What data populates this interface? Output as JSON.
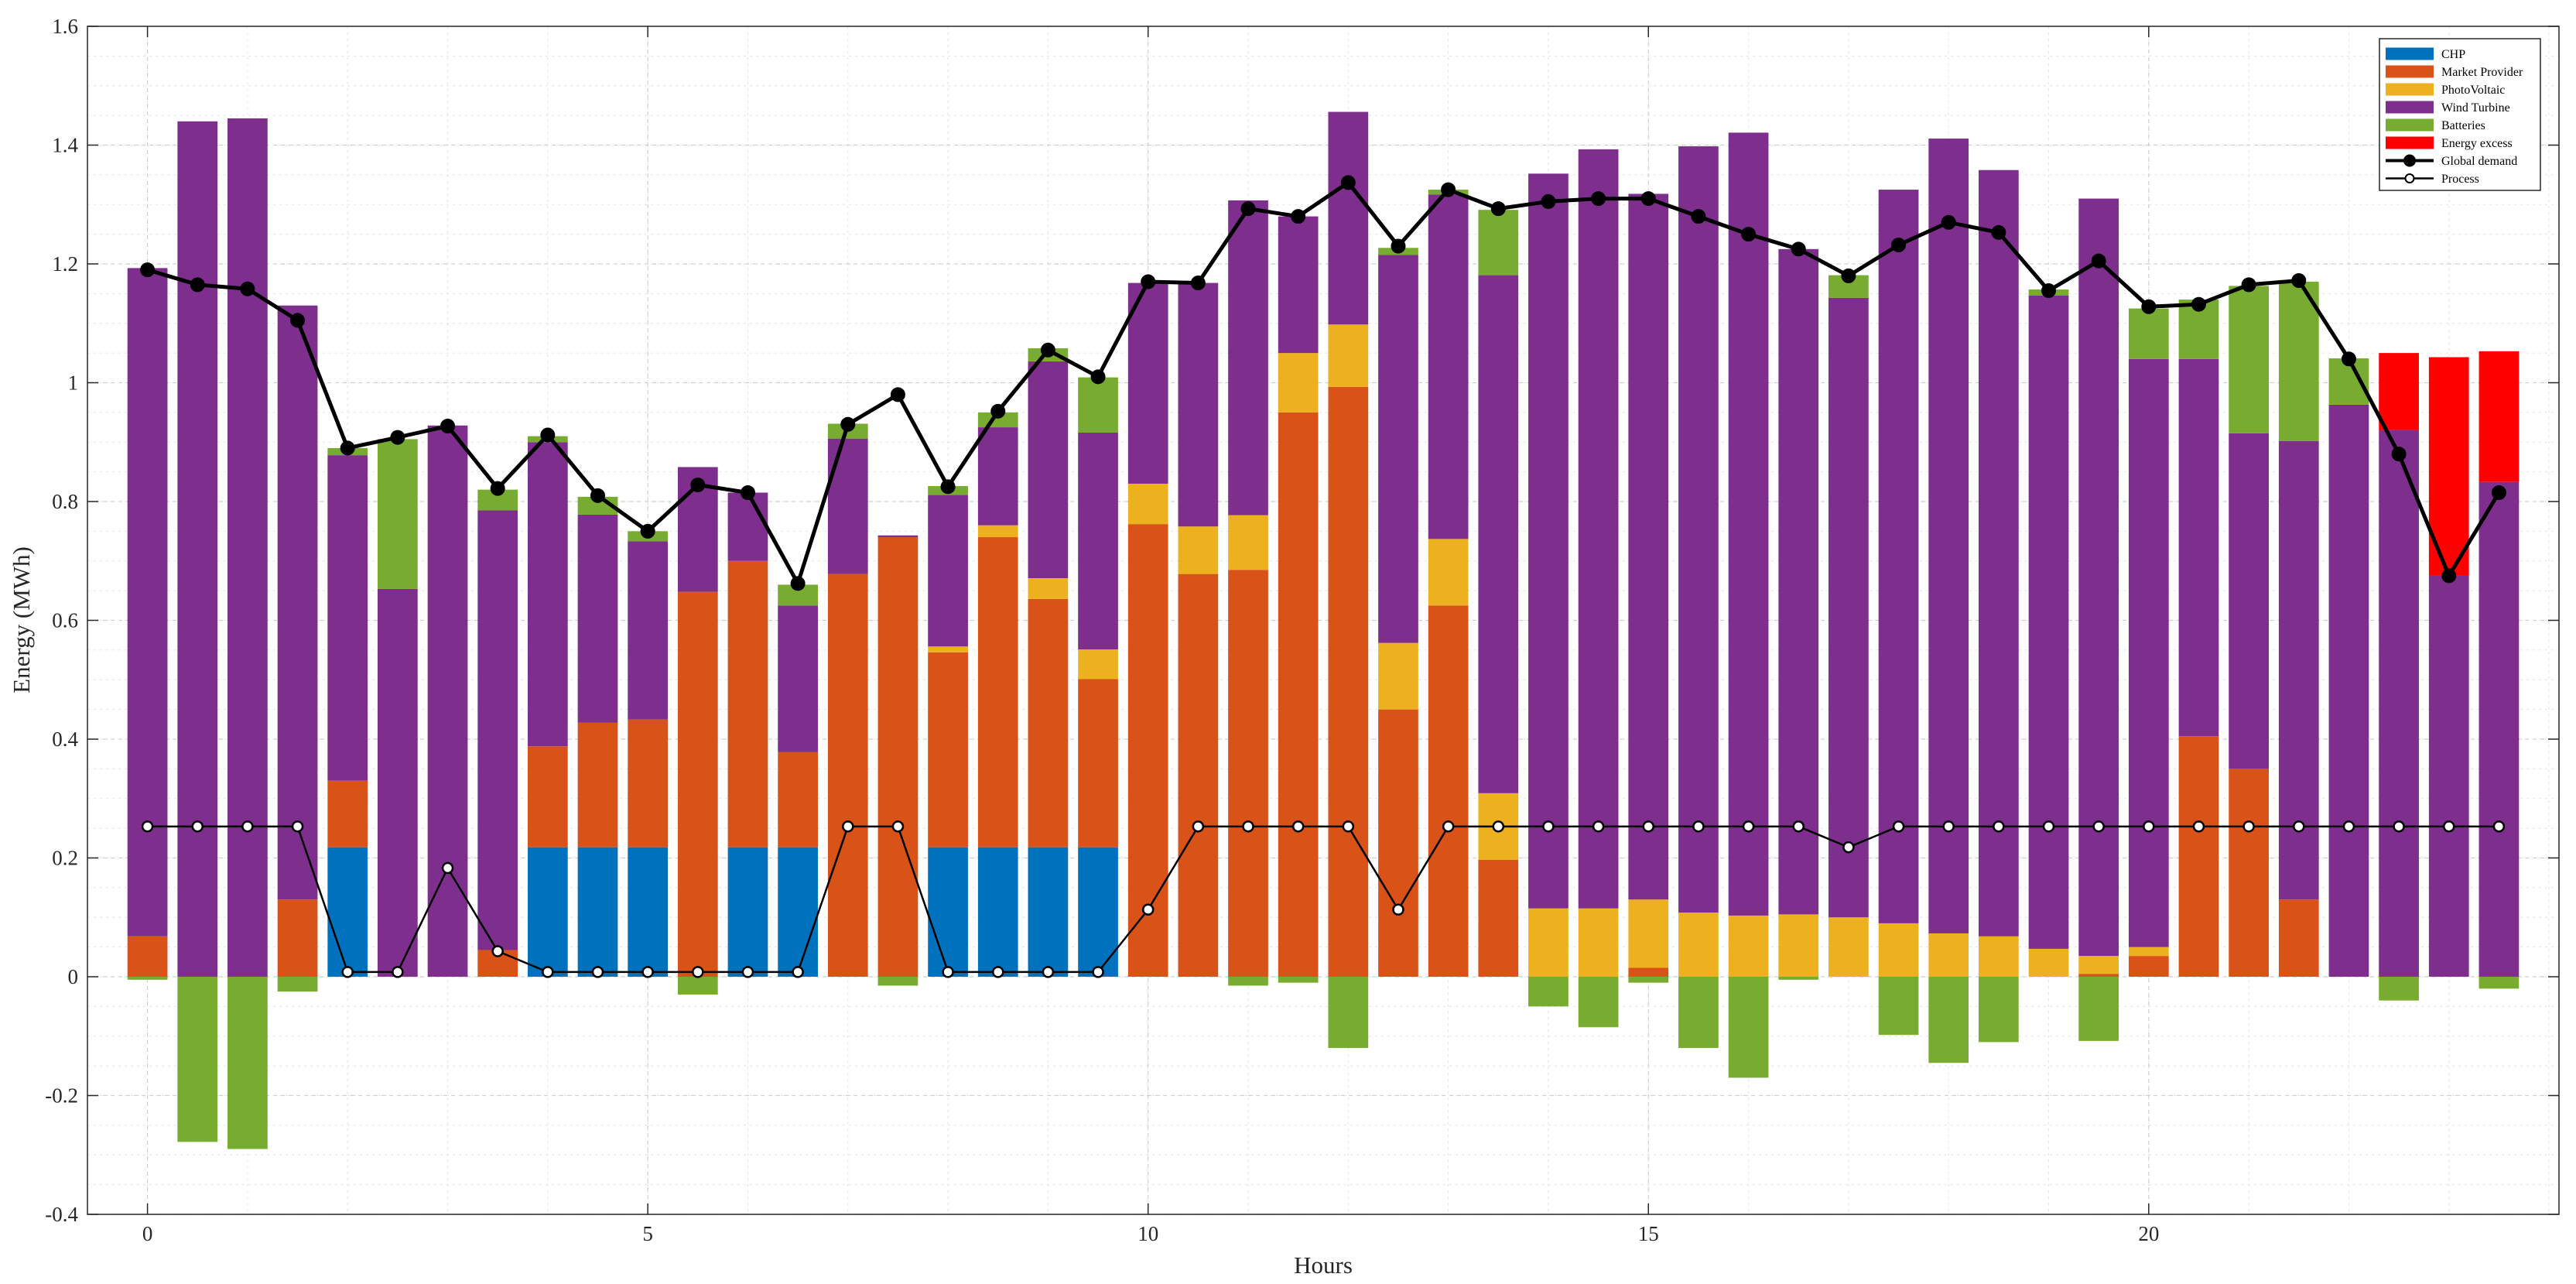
{
  "chart_data": {
    "type": "bar",
    "stacked": true,
    "title": "",
    "xlabel": "Hours",
    "ylabel": "Energy (MWh)",
    "xlim": [
      -0.6,
      24.1
    ],
    "ylim": [
      -0.4,
      1.6
    ],
    "x_ticks": [
      0,
      5,
      10,
      15,
      20
    ],
    "x_tick_labels": [
      "0",
      "5",
      "10",
      "15",
      "20"
    ],
    "y_ticks": [
      -0.4,
      -0.2,
      0,
      0.2,
      0.4,
      0.6,
      0.8,
      1,
      1.2,
      1.4,
      1.6
    ],
    "y_tick_labels": [
      "-0.4",
      "-0.2",
      "0",
      "0.2",
      "0.4",
      "0.6",
      "0.8",
      "1",
      "1.2",
      "1.4",
      "1.6"
    ],
    "grid": true,
    "legend_position": "top-right",
    "bar_width": 0.4,
    "x": [
      0,
      0.5,
      1,
      1.5,
      2,
      2.5,
      3,
      3.5,
      4,
      4.5,
      5,
      5.5,
      6,
      6.5,
      7,
      7.5,
      8,
      8.5,
      9,
      9.5,
      10,
      10.5,
      11,
      11.5,
      12,
      12.5,
      13,
      13.5,
      14,
      14.5,
      15,
      15.5,
      16,
      16.5,
      17,
      17.5,
      18,
      18.5,
      19,
      19.5,
      20,
      20.5,
      21,
      21.5,
      22,
      22.5,
      23,
      23.5
    ],
    "series": [
      {
        "name": "CHP",
        "color": "#0072BD",
        "kind": "bar",
        "values": [
          0,
          0,
          0,
          0,
          0.218,
          0,
          0,
          0,
          0.218,
          0.218,
          0.218,
          0,
          0.218,
          0.218,
          0,
          0,
          0.218,
          0.218,
          0.218,
          0.218,
          0,
          0,
          0,
          0,
          0,
          0,
          0,
          0,
          0,
          0,
          0,
          0,
          0,
          0,
          0,
          0,
          0,
          0,
          0,
          0,
          0,
          0,
          0,
          0,
          0,
          0,
          0,
          0
        ]
      },
      {
        "name": "Market Provider",
        "color": "#D95319",
        "kind": "bar",
        "values": [
          0.068,
          0,
          0,
          0.13,
          0.112,
          0,
          0,
          0.045,
          0.17,
          0.21,
          0.215,
          0.648,
          0.482,
          0.16,
          0.678,
          0.74,
          0.328,
          0.522,
          0.418,
          0.283,
          0.762,
          0.678,
          0.685,
          0.95,
          0.993,
          0.45,
          0.625,
          0.197,
          0,
          0,
          0.015,
          0,
          0,
          0,
          0,
          0,
          0,
          0,
          0,
          0.005,
          0.035,
          0.405,
          0.35,
          0.13,
          0,
          0,
          0,
          0
        ]
      },
      {
        "name": "PhotoVoltaic",
        "color": "#EDB120",
        "kind": "bar",
        "values": [
          0,
          0,
          0,
          0,
          0,
          0,
          0,
          0,
          0,
          0,
          0,
          0,
          0,
          0,
          0,
          0,
          0.01,
          0.02,
          0.035,
          0.05,
          0.068,
          0.08,
          0.092,
          0.1,
          0.105,
          0.112,
          0.112,
          0.112,
          0.115,
          0.115,
          0.115,
          0.108,
          0.103,
          0.105,
          0.1,
          0.09,
          0.073,
          0.068,
          0.047,
          0.03,
          0.015,
          0,
          0,
          0,
          0,
          0,
          0,
          0
        ]
      },
      {
        "name": "Wind Turbine",
        "color": "#7E2F8E",
        "kind": "bar",
        "values": [
          1.125,
          1.44,
          1.445,
          1.0,
          0.548,
          0.653,
          0.928,
          0.74,
          0.512,
          0.35,
          0.3,
          0.21,
          0.115,
          0.247,
          0.228,
          0.003,
          0.255,
          0.165,
          0.365,
          0.365,
          0.338,
          0.41,
          0.53,
          0.23,
          0.358,
          0.653,
          0.58,
          0.872,
          1.237,
          1.278,
          1.188,
          1.29,
          1.318,
          1.12,
          1.043,
          1.235,
          1.338,
          1.29,
          1.1,
          1.275,
          0.99,
          0.635,
          0.565,
          0.772,
          0.963,
          0.92,
          0.675,
          0.833
        ]
      },
      {
        "name": "Batteries",
        "color": "#77AC30",
        "kind": "bar",
        "values": [
          -0.005,
          -0.278,
          -0.29,
          -0.025,
          0.012,
          0.252,
          0,
          0.035,
          0.01,
          0.03,
          0.017,
          -0.03,
          0,
          0.035,
          0.025,
          -0.015,
          0.015,
          0.025,
          0.022,
          0.093,
          0,
          0,
          -0.015,
          -0.01,
          -0.12,
          0.012,
          0.008,
          0.11,
          -0.05,
          -0.085,
          -0.01,
          -0.12,
          -0.17,
          -0.005,
          0.038,
          -0.098,
          -0.145,
          -0.11,
          0.01,
          -0.108,
          0.085,
          0.1,
          0.248,
          0.268,
          0.078,
          -0.04,
          0,
          -0.02
        ]
      },
      {
        "name": "Energy excess",
        "color": "#FF0000",
        "kind": "bar",
        "values": [
          0,
          0,
          0,
          0,
          0,
          0,
          0,
          0,
          0,
          0,
          0,
          0,
          0,
          0,
          0,
          0,
          0,
          0,
          0,
          0,
          0,
          0,
          0,
          0,
          0,
          0,
          0,
          0,
          0,
          0,
          0,
          0,
          0,
          0,
          0,
          0,
          0,
          0,
          0,
          0,
          0,
          0,
          0,
          0,
          0,
          0.13,
          0.368,
          0.22
        ]
      },
      {
        "name": "Global demand",
        "color": "#000000",
        "kind": "line",
        "marker": "filled-circle",
        "values": [
          1.19,
          1.165,
          1.158,
          1.105,
          0.89,
          0.908,
          0.927,
          0.822,
          0.912,
          0.81,
          0.75,
          0.828,
          0.815,
          0.662,
          0.93,
          0.98,
          0.825,
          0.952,
          1.055,
          1.01,
          1.17,
          1.168,
          1.293,
          1.28,
          1.337,
          1.23,
          1.325,
          1.293,
          1.305,
          1.31,
          1.31,
          1.28,
          1.25,
          1.225,
          1.18,
          1.232,
          1.27,
          1.253,
          1.155,
          1.205,
          1.128,
          1.132,
          1.165,
          1.172,
          1.04,
          0.88,
          0.675,
          0.815
        ]
      },
      {
        "name": "Process",
        "color": "#000000",
        "kind": "line",
        "marker": "open-circle",
        "values": [
          0.253,
          0.253,
          0.253,
          0.253,
          0.008,
          0.008,
          0.183,
          0.043,
          0.008,
          0.008,
          0.008,
          0.008,
          0.008,
          0.008,
          0.253,
          0.253,
          0.008,
          0.008,
          0.008,
          0.008,
          0.113,
          0.253,
          0.253,
          0.253,
          0.253,
          0.113,
          0.253,
          0.253,
          0.253,
          0.253,
          0.253,
          0.253,
          0.253,
          0.253,
          0.218,
          0.253,
          0.253,
          0.253,
          0.253,
          0.253,
          0.253,
          0.253,
          0.253,
          0.253,
          0.253,
          0.253,
          0.253,
          0.253
        ]
      }
    ]
  }
}
